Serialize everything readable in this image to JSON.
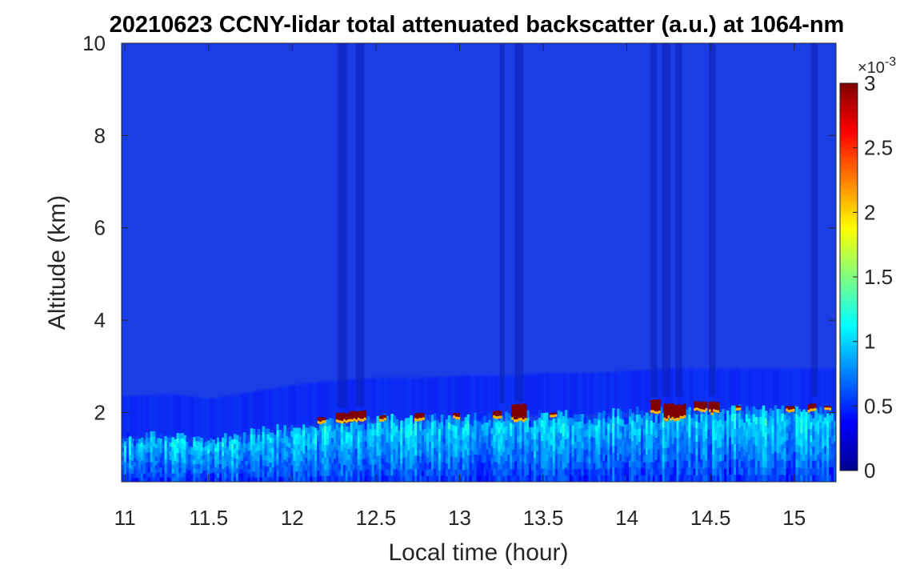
{
  "chart_data": {
    "type": "heatmap",
    "title": "20210623 CCNY-lidar total attenuated backscatter (a.u.) at 1064-nm",
    "xlabel": "Local time (hour)",
    "ylabel": "Altitude (km)",
    "xlim": [
      10.98,
      15.25
    ],
    "ylim": [
      0.5,
      10
    ],
    "xticks": [
      11,
      11.5,
      12,
      12.5,
      13,
      13.5,
      14,
      14.5,
      15
    ],
    "xtick_labels": [
      "11",
      "11.5",
      "12",
      "12.5",
      "13",
      "13.5",
      "14",
      "14.5",
      "15"
    ],
    "yticks": [
      2,
      4,
      6,
      8,
      10
    ],
    "ytick_labels": [
      "2",
      "4",
      "6",
      "8",
      "10"
    ],
    "colorbar": {
      "colormap": "jet",
      "clim": [
        0,
        3
      ],
      "exponent_label": "×10",
      "exponent_power": "-3",
      "ticks": [
        0,
        0.5,
        1,
        1.5,
        2,
        2.5,
        3
      ],
      "tick_labels": [
        "0",
        "0.5",
        "1",
        "1.5",
        "2",
        "2.5",
        "3"
      ]
    },
    "background_value": 0.22,
    "boundary_layer_top_km": [
      [
        11.0,
        1.45
      ],
      [
        11.25,
        1.5
      ],
      [
        11.5,
        1.4
      ],
      [
        11.75,
        1.55
      ],
      [
        12.0,
        1.7
      ],
      [
        12.25,
        1.8
      ],
      [
        12.5,
        1.85
      ],
      [
        12.75,
        1.85
      ],
      [
        13.0,
        1.9
      ],
      [
        13.25,
        1.9
      ],
      [
        13.5,
        1.95
      ],
      [
        13.75,
        1.95
      ],
      [
        14.0,
        2.0
      ],
      [
        14.25,
        2.05
      ],
      [
        14.5,
        2.05
      ],
      [
        14.75,
        2.05
      ],
      [
        15.0,
        2.05
      ],
      [
        15.25,
        2.05
      ]
    ],
    "cloud_segments": [
      {
        "x0": 12.15,
        "x1": 12.2,
        "y0": 1.75,
        "y1": 1.9
      },
      {
        "x0": 12.26,
        "x1": 12.34,
        "y0": 1.75,
        "y1": 2.0
      },
      {
        "x0": 12.34,
        "x1": 12.44,
        "y0": 1.8,
        "y1": 2.05
      },
      {
        "x0": 12.52,
        "x1": 12.56,
        "y0": 1.8,
        "y1": 1.95
      },
      {
        "x0": 12.73,
        "x1": 12.79,
        "y0": 1.8,
        "y1": 2.0
      },
      {
        "x0": 12.96,
        "x1": 13.0,
        "y0": 1.85,
        "y1": 2.0
      },
      {
        "x0": 13.2,
        "x1": 13.25,
        "y0": 1.85,
        "y1": 2.05
      },
      {
        "x0": 13.31,
        "x1": 13.4,
        "y0": 1.8,
        "y1": 2.2
      },
      {
        "x0": 13.54,
        "x1": 13.58,
        "y0": 1.9,
        "y1": 2.0
      },
      {
        "x0": 14.14,
        "x1": 14.2,
        "y0": 1.95,
        "y1": 2.3
      },
      {
        "x0": 14.22,
        "x1": 14.35,
        "y0": 1.8,
        "y1": 2.2
      },
      {
        "x0": 14.4,
        "x1": 14.48,
        "y0": 2.0,
        "y1": 2.25
      },
      {
        "x0": 14.49,
        "x1": 14.55,
        "y0": 1.95,
        "y1": 2.25
      },
      {
        "x0": 14.65,
        "x1": 14.68,
        "y0": 2.05,
        "y1": 2.15
      },
      {
        "x0": 14.95,
        "x1": 15.0,
        "y0": 2.0,
        "y1": 2.15
      },
      {
        "x0": 15.08,
        "x1": 15.13,
        "y0": 2.0,
        "y1": 2.2
      },
      {
        "x0": 15.18,
        "x1": 15.22,
        "y0": 2.05,
        "y1": 2.15
      }
    ],
    "dark_columns_hour": [
      [
        12.27,
        12.33
      ],
      [
        12.38,
        12.43
      ],
      [
        13.24,
        13.27
      ],
      [
        13.33,
        13.38
      ],
      [
        14.14,
        14.18
      ],
      [
        14.21,
        14.26
      ],
      [
        14.29,
        14.33
      ],
      [
        14.49,
        14.53
      ],
      [
        15.1,
        15.14
      ]
    ]
  }
}
